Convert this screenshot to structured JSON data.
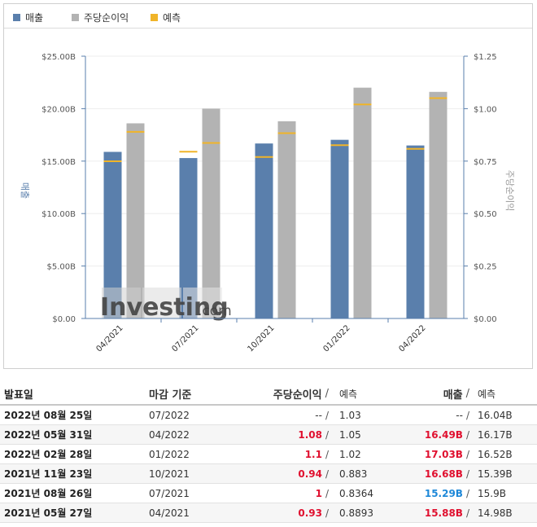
{
  "legend": [
    {
      "label": "매출",
      "color": "#5a7fac"
    },
    {
      "label": "주당순이익",
      "color": "#b3b3b3"
    },
    {
      "label": "예측",
      "color": "#f0b429"
    }
  ],
  "chart_data": {
    "type": "bar",
    "categories": [
      "04/2021",
      "07/2021",
      "10/2021",
      "01/2022",
      "04/2022"
    ],
    "series": [
      {
        "name": "매출",
        "axis": "left",
        "values": [
          15.88,
          15.29,
          16.68,
          17.03,
          16.49
        ],
        "forecast": [
          14.98,
          15.9,
          15.39,
          16.52,
          16.17
        ]
      },
      {
        "name": "주당순이익",
        "axis": "right",
        "values": [
          0.93,
          1.0,
          0.94,
          1.1,
          1.08
        ],
        "forecast": [
          0.8893,
          0.8364,
          0.883,
          1.02,
          1.05
        ]
      }
    ],
    "ylabel_left": "매출",
    "ylabel_right": "주당순이익",
    "ylim_left": [
      0,
      25
    ],
    "ylim_right": [
      0,
      1.25
    ],
    "yticks_left": [
      "$0.00",
      "$5.00B",
      "$10.00B",
      "$15.00B",
      "$20.00B",
      "$25.00B"
    ],
    "yticks_right": [
      "$0.00",
      "$0.25",
      "$0.50",
      "$0.75",
      "$1.00",
      "$1.25"
    ],
    "watermark": "Investing.com",
    "colors": {
      "revenue": "#5a7fac",
      "eps": "#b3b3b3",
      "forecast": "#f0b429"
    }
  },
  "table": {
    "headers": {
      "date": "발표일",
      "period": "마감 기준",
      "eps": "주당순이익",
      "eps_forecast": "예측",
      "revenue": "매출",
      "revenue_forecast": "예측",
      "slash": "/"
    },
    "rows": [
      {
        "date": "2022년 08월 25일",
        "period": "07/2022",
        "eps": "--",
        "eps_class": "neutral",
        "eps_forecast": "1.03",
        "revenue": "--",
        "revenue_class": "neutral",
        "revenue_forecast": "16.04B"
      },
      {
        "date": "2022년 05월 31일",
        "period": "04/2022",
        "eps": "1.08",
        "eps_class": "up",
        "eps_forecast": "1.05",
        "revenue": "16.49B",
        "revenue_class": "up",
        "revenue_forecast": "16.17B"
      },
      {
        "date": "2022년 02월 28일",
        "period": "01/2022",
        "eps": "1.1",
        "eps_class": "up",
        "eps_forecast": "1.02",
        "revenue": "17.03B",
        "revenue_class": "up",
        "revenue_forecast": "16.52B"
      },
      {
        "date": "2021년 11월 23일",
        "period": "10/2021",
        "eps": "0.94",
        "eps_class": "up",
        "eps_forecast": "0.883",
        "revenue": "16.68B",
        "revenue_class": "up",
        "revenue_forecast": "15.39B"
      },
      {
        "date": "2021년 08월 26일",
        "period": "07/2021",
        "eps": "1",
        "eps_class": "up",
        "eps_forecast": "0.8364",
        "revenue": "15.29B",
        "revenue_class": "down",
        "revenue_forecast": "15.9B"
      },
      {
        "date": "2021년 05월 27일",
        "period": "04/2021",
        "eps": "0.93",
        "eps_class": "up",
        "eps_forecast": "0.8893",
        "revenue": "15.88B",
        "revenue_class": "up",
        "revenue_forecast": "14.98B"
      }
    ]
  }
}
